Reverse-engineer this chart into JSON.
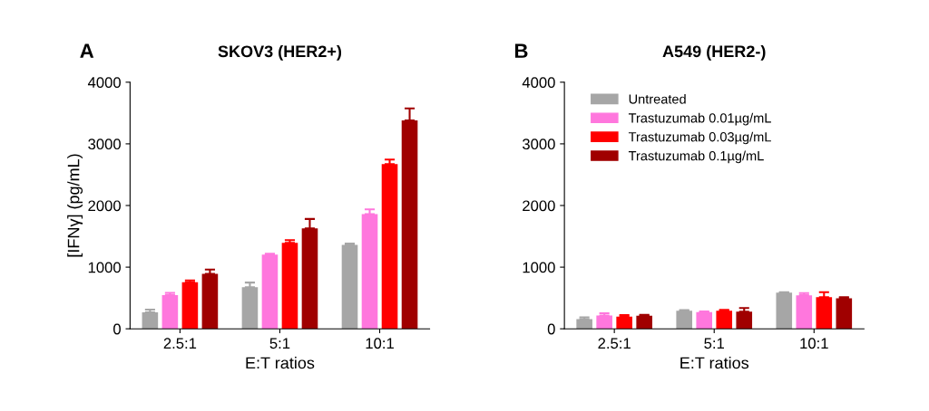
{
  "chart_data": [
    {
      "type": "bar",
      "title": "SKOV3 (HER2+)",
      "annotations": [
        "A"
      ],
      "xlabel": "E:T ratios",
      "ylabel": "[IFNγ] (pg/mL)",
      "categories": [
        "2.5:1",
        "5:1",
        "10:1"
      ],
      "ylim": [
        0,
        4000
      ],
      "yticks": [
        0,
        1000,
        2000,
        3000,
        4000
      ],
      "grid": false,
      "legend": false,
      "series": [
        {
          "color": "#a6a6a6",
          "values": [
            267,
            674,
            1363
          ],
          "errors": [
            [
              267,
              312
            ],
            [
              674,
              750
            ],
            [
              1363,
              1383
            ]
          ]
        },
        {
          "color": "#ff77dd",
          "values": [
            548,
            1202,
            1861
          ],
          "errors": [
            [
              548,
              583
            ],
            [
              1202,
              1217
            ],
            [
              1861,
              1937
            ]
          ]
        },
        {
          "color": "#ff0000",
          "values": [
            755,
            1393,
            2671
          ],
          "errors": [
            [
              755,
              785
            ],
            [
              1393,
              1439
            ],
            [
              2671,
              2746
            ]
          ]
        },
        {
          "color": "#a00000",
          "values": [
            890,
            1630,
            3380
          ],
          "errors": [
            [
              890,
              961
            ],
            [
              1630,
              1781
            ],
            [
              3380,
              3576
            ]
          ]
        }
      ]
    },
    {
      "type": "bar",
      "title": "A549 (HER2-)",
      "annotations": [
        "B"
      ],
      "xlabel": "E:T ratios",
      "categories": [
        "2.5:1",
        "5:1",
        "10:1"
      ],
      "ylim": [
        0,
        4000
      ],
      "yticks": [
        0,
        1000,
        2000,
        3000,
        4000
      ],
      "grid": false,
      "legend": "top left",
      "series": [
        {
          "name": "Untreated",
          "color": "#a6a6a6",
          "values": [
            156,
            292,
            585
          ],
          "errors": [
            [
              156,
              186
            ],
            [
              292,
              302
            ],
            [
              585,
              595
            ]
          ]
        },
        {
          "name": "Trastuzumab 0.01µg/mL",
          "color": "#ff77dd",
          "values": [
            217,
            272,
            544
          ],
          "errors": [
            [
              217,
              252
            ],
            [
              272,
              282
            ],
            [
              544,
              580
            ]
          ]
        },
        {
          "name": "Trastuzumab 0.03µg/mL",
          "color": "#ff0000",
          "values": [
            197,
            292,
            514
          ],
          "errors": [
            [
              197,
              222
            ],
            [
              292,
              307
            ],
            [
              514,
              595
            ]
          ]
        },
        {
          "name": "Trastuzumab 0.1µg/mL",
          "color": "#a00000",
          "values": [
            212,
            277,
            494
          ],
          "errors": [
            [
              212,
              227
            ],
            [
              277,
              338
            ],
            [
              494,
              514
            ]
          ]
        }
      ]
    }
  ]
}
